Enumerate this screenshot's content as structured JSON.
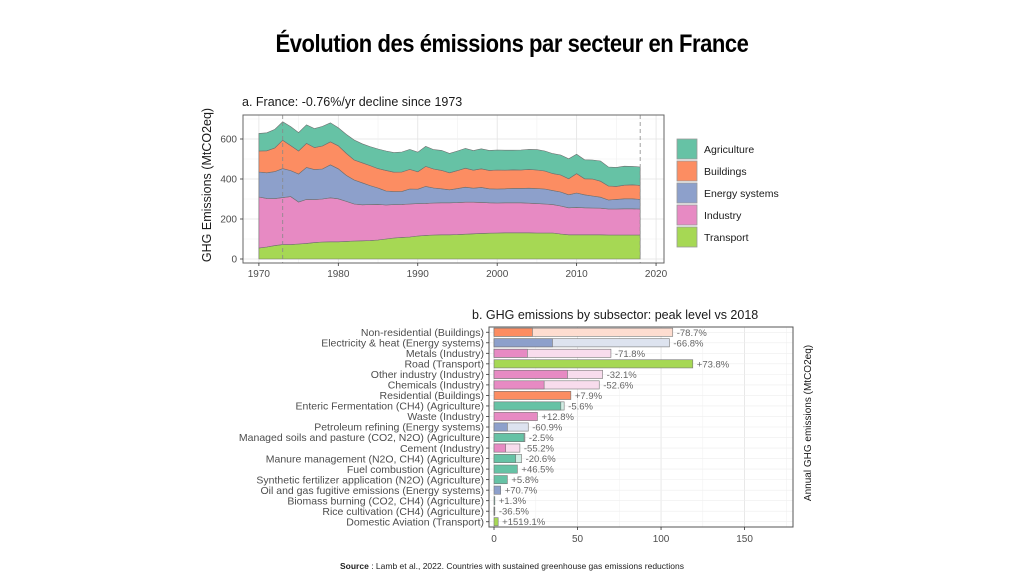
{
  "page": {
    "title": "Évolution des émissions par secteur en France",
    "source_label": "Source",
    "source_text": " : Lamb et al., 2022. Countries with sustained greenhouse gas emissions reductions"
  },
  "colors": {
    "Agriculture": "#66c2a5",
    "Buildings": "#fc8d62",
    "Energy systems": "#8da0cb",
    "Industry": "#e78ac3",
    "Transport": "#a6d854"
  },
  "chart_data": [
    {
      "type": "area",
      "stacked": true,
      "title": "a. France: -0.76%/yr decline since 1973",
      "xlabel": "",
      "ylabel": "GHG Emissions (MtCO2eq)",
      "xlim": [
        1968,
        2021
      ],
      "ylim": [
        -20,
        720
      ],
      "xticks": [
        1970,
        1980,
        1990,
        2000,
        2010,
        2020
      ],
      "yticks": [
        0,
        200,
        400,
        600
      ],
      "grid": true,
      "legend": "right",
      "reference_lines_x": [
        1973,
        2018
      ],
      "x": [
        1970,
        1971,
        1972,
        1973,
        1974,
        1975,
        1976,
        1977,
        1978,
        1979,
        1980,
        1981,
        1982,
        1983,
        1984,
        1985,
        1986,
        1987,
        1988,
        1989,
        1990,
        1991,
        1992,
        1993,
        1994,
        1995,
        1996,
        1997,
        1998,
        1999,
        2000,
        2001,
        2002,
        2003,
        2004,
        2005,
        2006,
        2007,
        2008,
        2009,
        2010,
        2011,
        2012,
        2013,
        2014,
        2015,
        2016,
        2017,
        2018
      ],
      "series": [
        {
          "name": "Transport",
          "values": [
            55,
            60,
            67,
            72,
            72,
            75,
            78,
            82,
            85,
            86,
            86,
            88,
            90,
            91,
            92,
            95,
            100,
            105,
            108,
            110,
            115,
            118,
            120,
            121,
            121,
            122,
            124,
            126,
            128,
            129,
            130,
            131,
            131,
            131,
            131,
            130,
            130,
            130,
            125,
            121,
            121,
            121,
            121,
            121,
            120,
            120,
            120,
            120,
            120
          ]
        },
        {
          "name": "Industry",
          "values": [
            255,
            243,
            235,
            235,
            240,
            210,
            220,
            215,
            215,
            220,
            215,
            200,
            185,
            180,
            180,
            178,
            170,
            167,
            165,
            165,
            162,
            160,
            160,
            160,
            160,
            160,
            160,
            158,
            155,
            152,
            150,
            150,
            150,
            150,
            148,
            147,
            145,
            142,
            140,
            135,
            137,
            135,
            134,
            133,
            130,
            130,
            131,
            131,
            130
          ]
        },
        {
          "name": "Energy systems",
          "values": [
            125,
            128,
            135,
            145,
            130,
            140,
            160,
            150,
            150,
            165,
            150,
            130,
            120,
            110,
            95,
            82,
            70,
            65,
            65,
            75,
            72,
            85,
            75,
            70,
            65,
            70,
            75,
            70,
            75,
            70,
            70,
            70,
            72,
            72,
            75,
            75,
            75,
            70,
            70,
            65,
            72,
            65,
            60,
            55,
            45,
            48,
            50,
            50,
            48
          ]
        },
        {
          "name": "Buildings",
          "values": [
            105,
            110,
            118,
            142,
            125,
            115,
            120,
            110,
            115,
            115,
            115,
            110,
            100,
            100,
            100,
            97,
            103,
            97,
            97,
            98,
            87,
            100,
            95,
            92,
            85,
            90,
            95,
            90,
            93,
            92,
            95,
            93,
            93,
            92,
            94,
            93,
            90,
            85,
            85,
            80,
            97,
            80,
            85,
            80,
            70,
            65,
            68,
            70,
            70
          ]
        },
        {
          "name": "Agriculture",
          "values": [
            88,
            90,
            93,
            92,
            95,
            92,
            93,
            95,
            98,
            95,
            90,
            95,
            100,
            95,
            95,
            98,
            97,
            98,
            100,
            100,
            98,
            100,
            97,
            100,
            97,
            98,
            99,
            98,
            100,
            100,
            100,
            100,
            98,
            100,
            100,
            102,
            100,
            100,
            100,
            100,
            97,
            95,
            95,
            101,
            95,
            95,
            95,
            92,
            92
          ]
        }
      ]
    },
    {
      "type": "bar",
      "orientation": "horizontal",
      "title": "b. GHG emissions by subsector: peak level vs 2018",
      "xlabel": "",
      "ylabel": "Annual GHG emissions (MtCO2eq)",
      "xlim": [
        -3,
        179
      ],
      "xticks": [
        0,
        50,
        100,
        150
      ],
      "grid": true,
      "legend": "none",
      "categories": [
        "Non-residential (Buildings)",
        "Electricity & heat (Energy systems)",
        "Metals (Industry)",
        "Road (Transport)",
        "Other industry (Industry)",
        "Chemicals (Industry)",
        "Residential (Buildings)",
        "Enteric Fermentation (CH4) (Agriculture)",
        "Waste (Industry)",
        "Petroleum refining (Energy systems)",
        "Managed soils and pasture (CO2, N2O) (Agriculture)",
        "Cement (Industry)",
        "Manure management (N2O, CH4) (Agriculture)",
        "Fuel combustion (Agriculture)",
        "Synthetic fertilizer application (N2O) (Agriculture)",
        "Oil and gas fugitive emissions (Energy systems)",
        "Biomass burning (CO2, CH4) (Agriculture)",
        "Rice cultivation (CH4) (Agriculture)",
        "Domestic Aviation (Transport)"
      ],
      "sectors": [
        "Buildings",
        "Energy systems",
        "Industry",
        "Transport",
        "Industry",
        "Industry",
        "Buildings",
        "Agriculture",
        "Industry",
        "Energy systems",
        "Agriculture",
        "Industry",
        "Agriculture",
        "Agriculture",
        "Agriculture",
        "Energy systems",
        "Agriculture",
        "Agriculture",
        "Transport"
      ],
      "series": [
        {
          "name": "2018",
          "values": [
            23,
            35,
            20,
            119,
            44,
            30,
            46,
            40,
            26,
            8,
            18,
            7,
            13,
            14,
            8,
            4,
            0.5,
            0.3,
            2.5
          ]
        },
        {
          "name": "Peak",
          "values": [
            107,
            105,
            70,
            68.5,
            65,
            63,
            42.5,
            42,
            23,
            20.5,
            18.5,
            15.5,
            16.5,
            9.5,
            7.5,
            2.3,
            0.5,
            0.5,
            0.15
          ]
        }
      ],
      "labels": [
        "-78.7%",
        "-66.8%",
        "-71.8%",
        "+73.8%",
        "-32.1%",
        "-52.6%",
        "+7.9%",
        "-5.6%",
        "+12.8%",
        "-60.9%",
        "-2.5%",
        "-55.2%",
        "-20.6%",
        "+46.5%",
        "+5.8%",
        "+70.7%",
        "+1.3%",
        "-36.5%",
        "+1519.1%"
      ]
    }
  ]
}
